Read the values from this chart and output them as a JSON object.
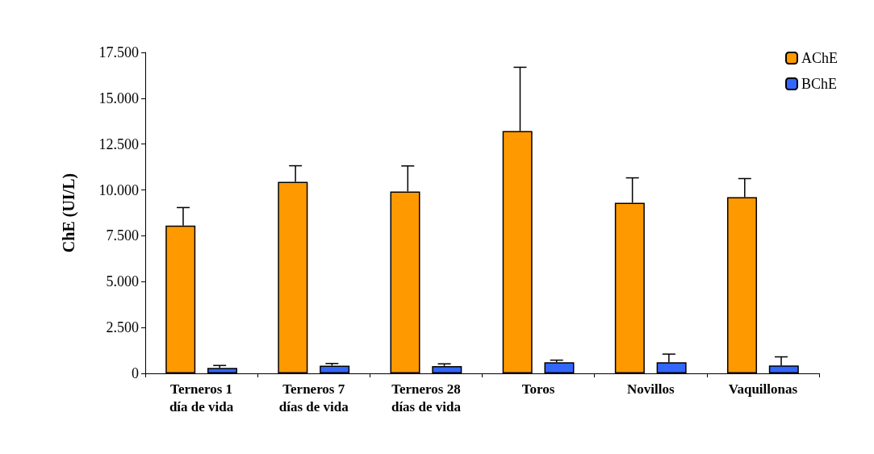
{
  "chart_data": {
    "type": "bar",
    "ylabel": "ChE (UI/L)",
    "categories": [
      "Terneros 1\ndía de vida",
      "Terneros 7\ndías de vida",
      "Terneros 28\ndías de vida",
      "Toros",
      "Novillos",
      "Vaquillonas"
    ],
    "series": [
      {
        "name": "AChE",
        "color": "#ff9900",
        "values": [
          8060,
          10440,
          9920,
          13210,
          9300,
          9610
        ],
        "errors": [
          [
            8060,
            9040
          ],
          [
            10440,
            11320
          ],
          [
            9920,
            11310
          ],
          [
            13210,
            16690
          ],
          [
            9300,
            10660
          ],
          [
            9610,
            10620
          ]
        ]
      },
      {
        "name": "BChE",
        "color": "#3366ff",
        "values": [
          300,
          420,
          400,
          600,
          600,
          430
        ],
        "errors": [
          [
            300,
            430
          ],
          [
            420,
            540
          ],
          [
            400,
            520
          ],
          [
            600,
            720
          ],
          [
            600,
            1050
          ],
          [
            430,
            900
          ]
        ]
      }
    ],
    "ylim": [
      0,
      17500
    ],
    "yticks": [
      0,
      {
        "value": 2500,
        "label": "2.500"
      },
      {
        "value": 5000,
        "label": "5.000"
      },
      {
        "value": 7500,
        "label": "7.500"
      },
      {
        "value": 10000,
        "label": "10.000"
      },
      {
        "value": 12500,
        "label": "12.500"
      },
      {
        "value": 15000,
        "label": "15.000"
      },
      {
        "value": 17500,
        "label": "17.500"
      }
    ],
    "grid": false,
    "legend": "top right"
  }
}
